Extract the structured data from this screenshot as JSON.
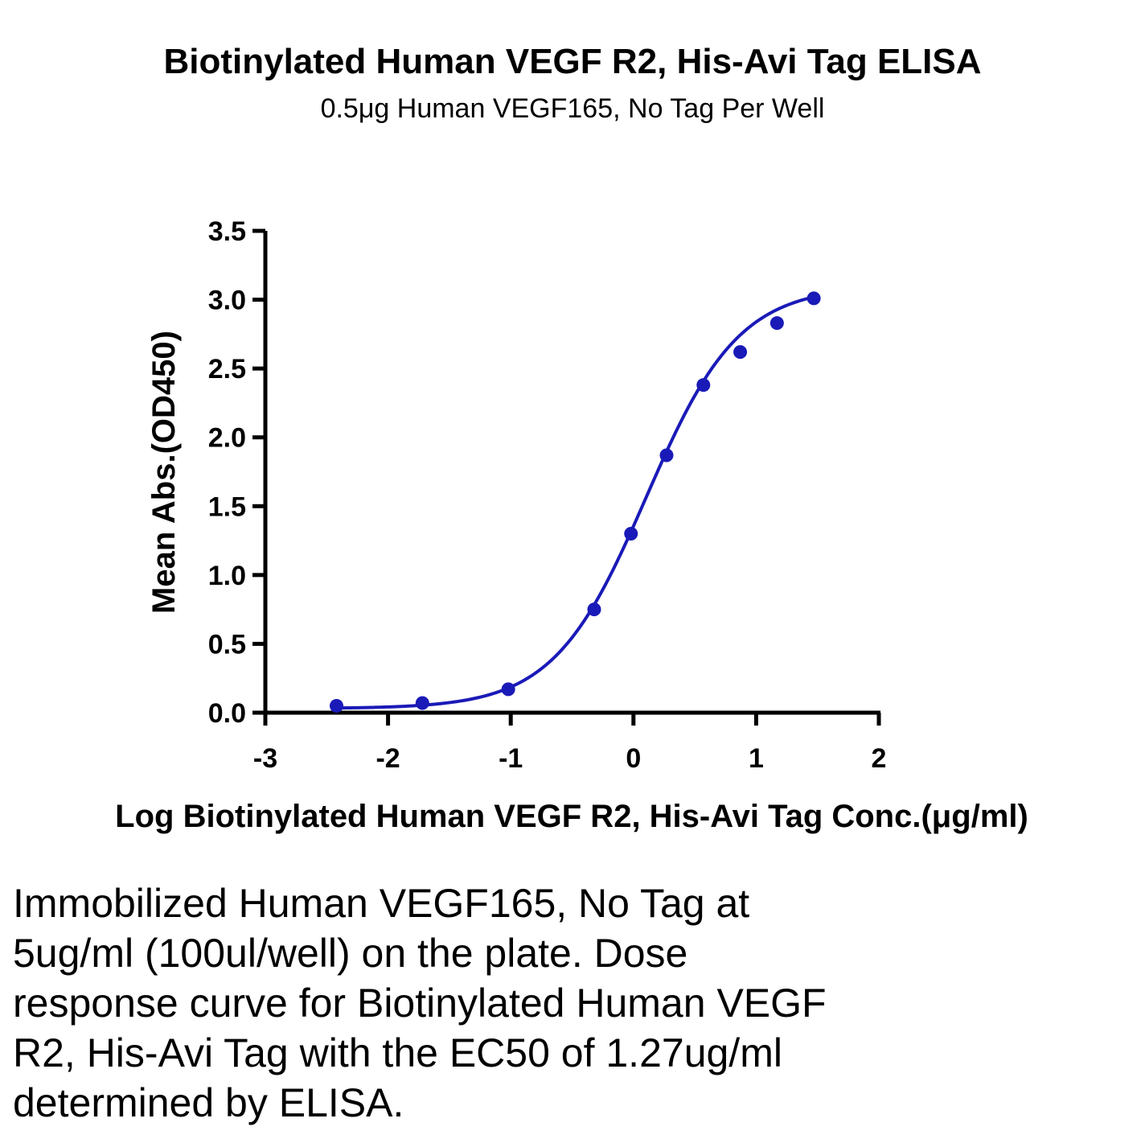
{
  "chart_data": {
    "type": "scatter",
    "title": "Biotinylated Human VEGF R2, His-Avi Tag ELISA",
    "subtitle": "0.5μg Human VEGF165, No Tag Per Well",
    "xlabel": "Log Biotinylated Human VEGF R2, His-Avi Tag Conc.(μg/ml)",
    "ylabel": "Mean Abs.(OD450)",
    "xlim": [
      -3,
      2
    ],
    "ylim": [
      0,
      3.5
    ],
    "x_ticks": [
      "-3",
      "-2",
      "-1",
      "0",
      "1",
      "2"
    ],
    "y_ticks": [
      "0.0",
      "0.5",
      "1.0",
      "1.5",
      "2.0",
      "2.5",
      "3.0",
      "3.5"
    ],
    "grid": false,
    "series": [
      {
        "color": "#1a1ab8",
        "points": [
          {
            "x": -2.42,
            "y": 0.05
          },
          {
            "x": -1.72,
            "y": 0.07
          },
          {
            "x": -1.02,
            "y": 0.17
          },
          {
            "x": -0.32,
            "y": 0.75
          },
          {
            "x": -0.02,
            "y": 1.3
          },
          {
            "x": 0.27,
            "y": 1.87
          },
          {
            "x": 0.57,
            "y": 2.38
          },
          {
            "x": 0.87,
            "y": 2.62
          },
          {
            "x": 1.17,
            "y": 2.83
          },
          {
            "x": 1.47,
            "y": 3.01
          }
        ],
        "fit": {
          "model": "4PL",
          "bottom": 0.03,
          "top": 3.1,
          "log_ec50": 0.104,
          "hill": 1.15
        }
      }
    ]
  },
  "caption": "Immobilized Human VEGF165, No Tag at 5ug/ml (100ul/well) on the plate. Dose response curve for Biotinylated Human VEGF R2, His-Avi Tag with the EC50 of 1.27ug/ml determined by ELISA."
}
